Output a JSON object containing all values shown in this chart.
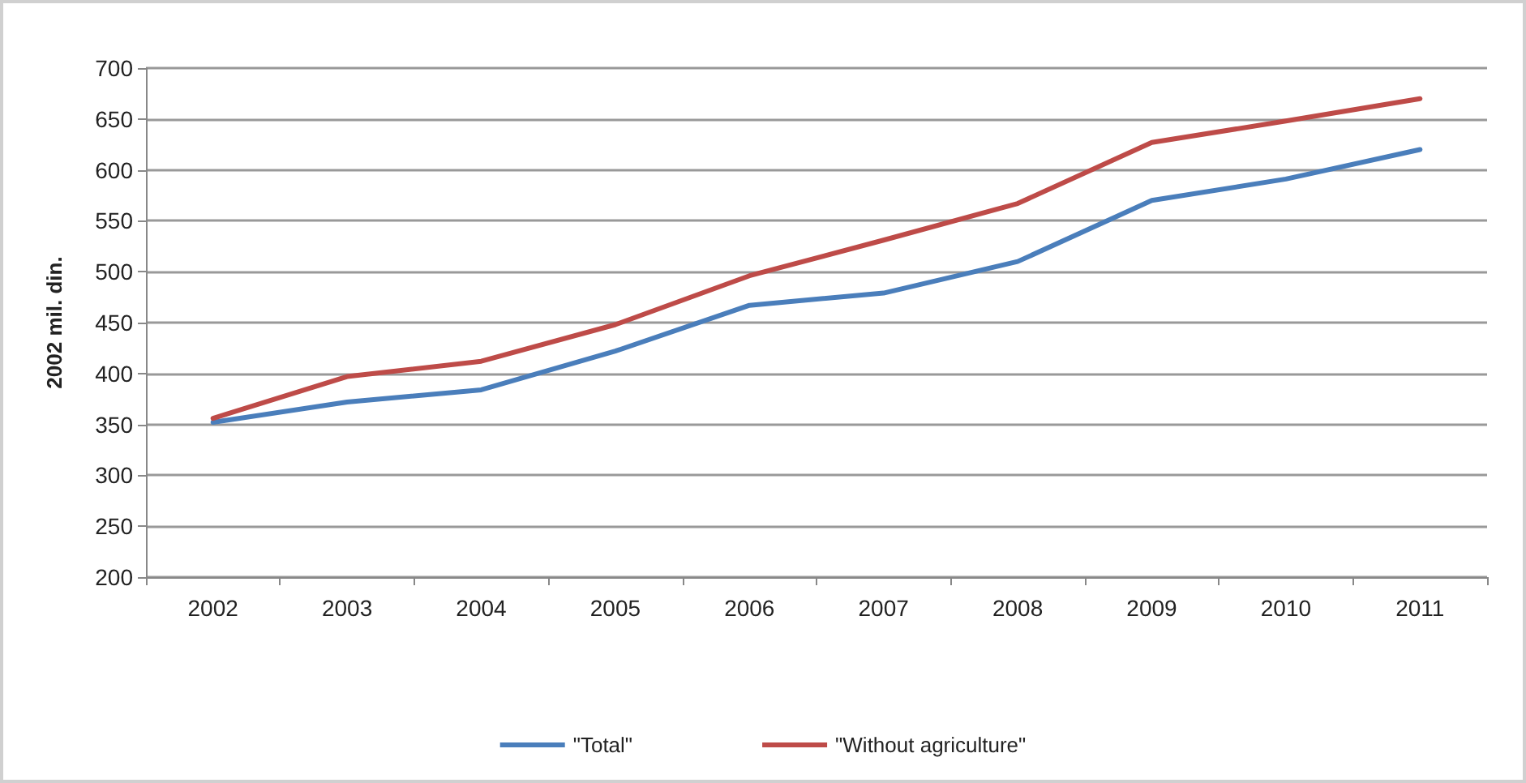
{
  "chart_data": {
    "type": "line",
    "ylabel": "2002 mil. din.",
    "categories": [
      "2002",
      "2003",
      "2004",
      "2005",
      "2006",
      "2007",
      "2008",
      "2009",
      "2010",
      "2011"
    ],
    "series": [
      {
        "name": "\"Total\"",
        "color": "#4a7ebb",
        "values": [
          352,
          372,
          384,
          422,
          467,
          479,
          510,
          570,
          591,
          620
        ]
      },
      {
        "name": "\"Without agriculture\"",
        "color": "#be4b48",
        "values": [
          356,
          397,
          412,
          448,
          496,
          531,
          567,
          627,
          648,
          670
        ]
      }
    ],
    "ylim": [
      200,
      700
    ],
    "yticks": [
      200,
      250,
      300,
      350,
      400,
      450,
      500,
      550,
      600,
      650,
      700
    ],
    "grid": "y",
    "legend": "bottom",
    "marker": "none",
    "line_style": "solid"
  }
}
